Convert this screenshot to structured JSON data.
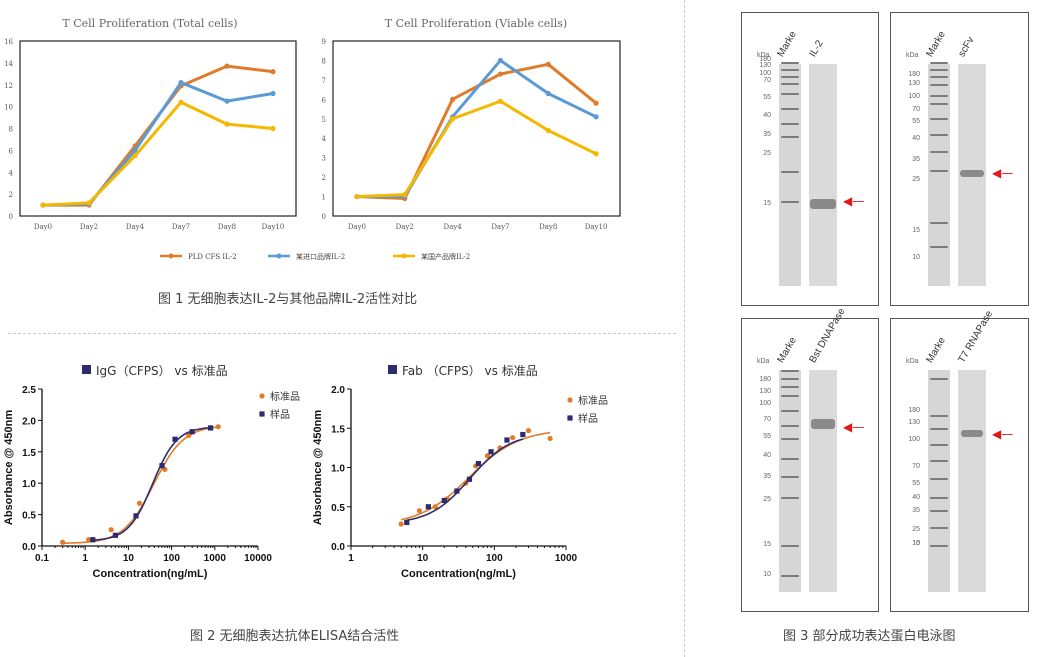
{
  "captions": {
    "fig1": "图 1 无细胞表达IL-2与其他品牌IL-2活性对比",
    "fig2": "图 2 无细胞表达抗体ELISA结合活性",
    "fig3": "图 3 部分成功表达蛋白电泳图"
  },
  "colors": {
    "orange": "#E07B2A",
    "blue": "#5B9BD5",
    "yellow": "#F5B800",
    "elisa_std": "#E07B2A",
    "elisa_sample": "#2E2A6E",
    "arrow": "#E01818"
  },
  "chart_data": [
    {
      "type": "line",
      "title": "T Cell Proliferation (Total cells)",
      "categories": [
        "Day0",
        "Day2",
        "Day4",
        "Day7",
        "Day8",
        "Day10"
      ],
      "ylim": [
        0,
        16
      ],
      "yticks": [
        "0",
        "2",
        "4",
        "6",
        "8",
        "10",
        "12",
        "14",
        "16"
      ],
      "series": [
        {
          "name": "PLD CFS IL-2",
          "color": "#E07B2A",
          "values": [
            1.0,
            1.0,
            6.4,
            11.9,
            13.7,
            13.2
          ]
        },
        {
          "name": "某进口品牌IL-2",
          "color": "#5B9BD5",
          "values": [
            1.0,
            1.1,
            6.0,
            12.2,
            10.5,
            11.2
          ]
        },
        {
          "name": "某国产品牌IL-2",
          "color": "#F5B800",
          "values": [
            1.0,
            1.2,
            5.5,
            10.4,
            8.4,
            8.0
          ]
        }
      ]
    },
    {
      "type": "line",
      "title": "T Cell Proliferation (Viable cells)",
      "categories": [
        "Day0",
        "Day2",
        "Day4",
        "Day7",
        "Day8",
        "Day10"
      ],
      "ylim": [
        0,
        9
      ],
      "yticks": [
        "0",
        "1",
        "2",
        "3",
        "4",
        "5",
        "6",
        "7",
        "8",
        "9"
      ],
      "series": [
        {
          "name": "PLD CFS IL-2",
          "color": "#E07B2A",
          "values": [
            1.0,
            0.9,
            6.0,
            7.3,
            7.8,
            5.8
          ]
        },
        {
          "name": "某进口品牌IL-2",
          "color": "#5B9BD5",
          "values": [
            1.0,
            1.0,
            5.1,
            8.0,
            6.3,
            5.1
          ]
        },
        {
          "name": "某国产品牌IL-2",
          "color": "#F5B800",
          "values": [
            1.0,
            1.1,
            5.0,
            5.9,
            4.4,
            3.2
          ]
        }
      ]
    },
    {
      "type": "scatter",
      "title": "IgG（CFPS） vs 标准品",
      "xlabel": "Concentration(ng/mL)",
      "ylabel": "Absorbance @ 450nm",
      "xscale": "log",
      "xlim": [
        0.1,
        10000
      ],
      "ylim": [
        0,
        2.5
      ],
      "xticks": [
        "0.1",
        "1",
        "10",
        "100",
        "1000",
        "10000"
      ],
      "yticks": [
        "0.0",
        "0.5",
        "1.0",
        "1.5",
        "2.0",
        "2.5"
      ],
      "series": [
        {
          "name": "标准品",
          "marker": "circle",
          "color": "#E07B2A",
          "x": [
            0.3,
            1.2,
            4,
            18,
            70,
            250,
            1200
          ],
          "y": [
            0.06,
            0.1,
            0.26,
            0.68,
            1.22,
            1.76,
            1.9
          ]
        },
        {
          "name": "样品",
          "marker": "square",
          "color": "#2E2A6E",
          "x": [
            1.5,
            5,
            15,
            60,
            120,
            300,
            800
          ],
          "y": [
            0.1,
            0.17,
            0.48,
            1.28,
            1.7,
            1.82,
            1.88
          ]
        }
      ]
    },
    {
      "type": "scatter",
      "title": "Fab （CFPS） vs 标准品",
      "xlabel": "Concentration(ng/mL)",
      "ylabel": "Absorbance @ 450nm",
      "xscale": "log",
      "xlim": [
        1,
        1000
      ],
      "ylim": [
        0,
        2.0
      ],
      "xticks": [
        "1",
        "10",
        "100",
        "1000"
      ],
      "yticks": [
        "0.0",
        "0.5",
        "1.0",
        "1.5",
        "2.0"
      ],
      "series": [
        {
          "name": "标准品",
          "marker": "circle",
          "color": "#E07B2A",
          "x": [
            5,
            9,
            15,
            22,
            30,
            40,
            55,
            80,
            120,
            180,
            300,
            600
          ],
          "y": [
            0.28,
            0.45,
            0.5,
            0.6,
            0.7,
            0.8,
            1.02,
            1.15,
            1.25,
            1.38,
            1.47,
            1.37
          ]
        },
        {
          "name": "样品",
          "marker": "square",
          "color": "#2E2A6E",
          "x": [
            6,
            12,
            20,
            30,
            45,
            60,
            90,
            150,
            250
          ],
          "y": [
            0.3,
            0.5,
            0.58,
            0.7,
            0.85,
            1.05,
            1.2,
            1.35,
            1.42
          ]
        }
      ]
    }
  ],
  "gels": [
    {
      "kda": "kDa",
      "lanes": [
        "Marke",
        "IL-2"
      ],
      "markers": [
        "180",
        "130",
        "100",
        "70",
        "55",
        "40",
        "35",
        "25",
        "15"
      ]
    },
    {
      "kda": "kDa",
      "lanes": [
        "Marke",
        "scFv"
      ],
      "markers": [
        "180",
        "130",
        "100",
        "70",
        "55",
        "40",
        "35",
        "25",
        "15",
        "10"
      ]
    },
    {
      "kda": "kDa",
      "lanes": [
        "Marke",
        "Bst DNAPase"
      ],
      "markers": [
        "180",
        "130",
        "100",
        "70",
        "55",
        "40",
        "35",
        "25",
        "15",
        "10"
      ]
    },
    {
      "kda": "kDa",
      "lanes": [
        "Marke",
        "T7 RNAPase"
      ],
      "markers": [
        "180",
        "130",
        "100",
        "70",
        "55",
        "40",
        "35",
        "25",
        "15",
        "10"
      ]
    }
  ]
}
